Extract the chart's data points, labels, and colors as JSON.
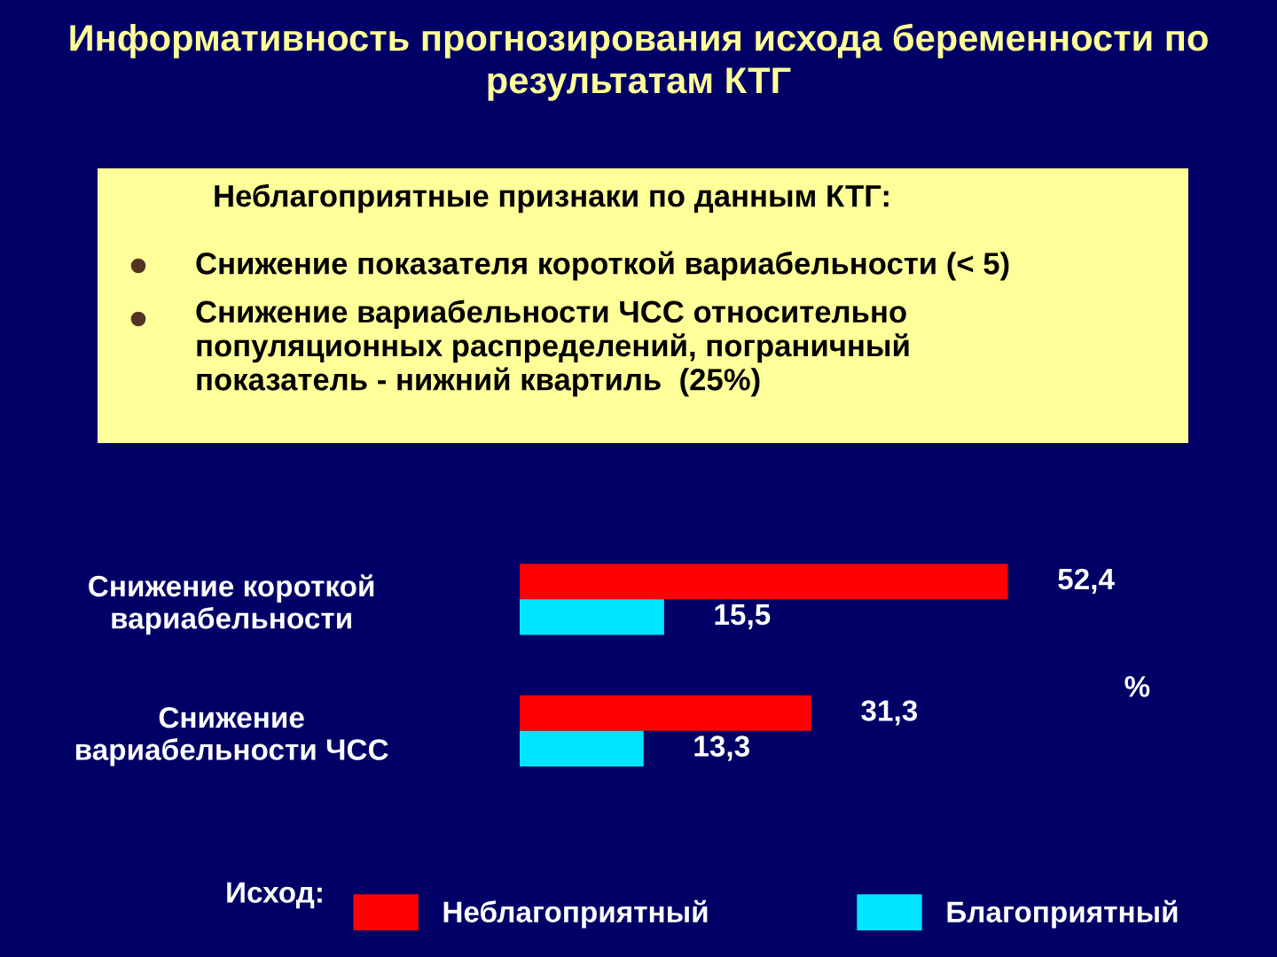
{
  "chart_data": {
    "type": "bar",
    "orientation": "horizontal",
    "title": "Информативность прогнозирования исхода беременности по\nрезультатам КТГ",
    "annotations": [
      "Неблагоприятные признаки по данным КТГ:",
      "Снижение показателя короткой вариабельности (< 5)",
      "Снижение вариабельности ЧСС относительно\nпопуляционных распределений, пограничный\nпоказатель - нижний квартиль  (25%)"
    ],
    "categories": [
      "Снижение короткой\nвариабельности",
      "Снижение\nвариабельности ЧСС"
    ],
    "series": [
      {
        "name": "Неблагоприятный",
        "color": "#ff0000",
        "values": [
          52.4,
          31.3
        ],
        "value_labels": [
          "52,4",
          "31,3"
        ]
      },
      {
        "name": "Благоприятный",
        "color": "#00e5ff",
        "values": [
          15.5,
          13.3
        ],
        "value_labels": [
          "15,5",
          "13,3"
        ]
      }
    ],
    "xlabel": "%",
    "legend": "bottom",
    "legend_title": "Исход:"
  }
}
